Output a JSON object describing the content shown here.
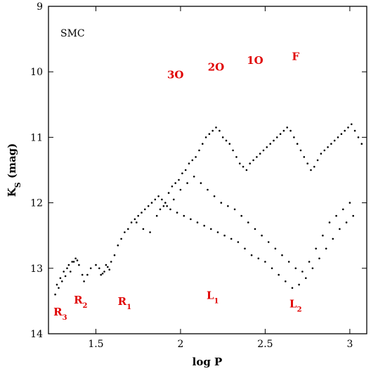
{
  "chart_data": {
    "type": "scatter",
    "title": "",
    "panel_label": "SMC",
    "xlabel": "log P",
    "ylabel_main": "K",
    "ylabel_sub": "S",
    "ylabel_suffix": " (mag)",
    "xlim": [
      1.22,
      3.1
    ],
    "ylim": [
      9,
      14
    ],
    "y_inverted": true,
    "grid": false,
    "x_ticks": [
      1.5,
      2,
      2.5,
      3
    ],
    "x_tick_labels": [
      "1.5",
      "2",
      "2.5",
      "3"
    ],
    "y_ticks": [
      9,
      10,
      11,
      12,
      13,
      14
    ],
    "y_tick_labels": [
      "9",
      "10",
      "11",
      "12",
      "13",
      "14"
    ],
    "point_color": "#000000",
    "annotation_color": "#e00000",
    "annotations": [
      {
        "text": "3O",
        "x": 1.97,
        "y": 10.1
      },
      {
        "text": "2O",
        "x": 2.21,
        "y": 9.98
      },
      {
        "text": "1O",
        "x": 2.44,
        "y": 9.88
      },
      {
        "text": "F",
        "x": 2.68,
        "y": 9.82
      },
      {
        "text": "R",
        "sub": "3",
        "x": 1.29,
        "y": 13.72
      },
      {
        "text": "R",
        "sub": "2",
        "x": 1.41,
        "y": 13.54
      },
      {
        "text": "R",
        "sub": "1",
        "x": 1.67,
        "y": 13.56
      },
      {
        "text": "L",
        "sub": "1",
        "x": 2.19,
        "y": 13.47
      },
      {
        "text": "L",
        "sub": "2",
        "x": 2.68,
        "y": 13.6
      }
    ],
    "series": [
      {
        "x": [
          1.27,
          1.29,
          1.31,
          1.34,
          1.36,
          1.38,
          1.4,
          1.42,
          1.3,
          1.33,
          1.37,
          1.35,
          1.39,
          1.32,
          1.28,
          1.26,
          1.43,
          1.45,
          1.47,
          1.5,
          1.52,
          1.55,
          1.57,
          1.59,
          1.53,
          1.56,
          1.58,
          1.54,
          1.61,
          1.63,
          1.65,
          1.67,
          1.69,
          1.71,
          1.73,
          1.75,
          1.77,
          1.79,
          1.81,
          1.83,
          1.85,
          1.87,
          1.89,
          1.91,
          1.93,
          1.95,
          1.97,
          1.99,
          2.01,
          2.03,
          2.05,
          2.07,
          2.09,
          2.11,
          2.13,
          2.15,
          2.17,
          2.19,
          2.21,
          2.23,
          2.25,
          2.27,
          2.29,
          2.31,
          2.33,
          2.35,
          2.37,
          2.39,
          2.41,
          2.43,
          2.45,
          2.47,
          2.49,
          2.51,
          2.53,
          2.55,
          2.57,
          2.59,
          2.61,
          2.63,
          2.65,
          2.67,
          2.69,
          2.71,
          2.73,
          2.75,
          2.77,
          2.79,
          2.81,
          2.83,
          2.85,
          2.87,
          2.89,
          2.91,
          2.93,
          2.95,
          2.97,
          2.99,
          3.01,
          3.03,
          3.05,
          3.07,
          1.88,
          1.92,
          1.96,
          2.0,
          2.04,
          2.08,
          2.12,
          2.16,
          2.2,
          2.24,
          2.28,
          2.32,
          2.36,
          2.4,
          2.44,
          2.48,
          2.52,
          2.56,
          2.6,
          2.64,
          2.68,
          2.72,
          2.76,
          2.8,
          2.84,
          2.88,
          2.92,
          2.96,
          3.0,
          1.74,
          1.78,
          1.82,
          1.86,
          1.9,
          1.94,
          1.98,
          2.02,
          2.06,
          2.1,
          2.14,
          2.18,
          2.22,
          2.26,
          2.3,
          2.34,
          2.38,
          2.42,
          2.46,
          2.5,
          2.54,
          2.58,
          2.62,
          2.66,
          2.7,
          2.74,
          2.78,
          2.82,
          2.86,
          2.9,
          2.94,
          2.98,
          3.02
        ],
        "y": [
          13.25,
          13.15,
          13.05,
          12.95,
          12.9,
          12.85,
          12.95,
          13.1,
          13.2,
          13.0,
          12.9,
          13.05,
          12.88,
          13.12,
          13.3,
          13.4,
          13.2,
          13.1,
          13.0,
          12.95,
          13.0,
          13.05,
          12.98,
          12.9,
          13.1,
          12.95,
          13.02,
          13.08,
          12.8,
          12.65,
          12.55,
          12.45,
          12.4,
          12.3,
          12.25,
          12.2,
          12.15,
          12.1,
          12.05,
          12.0,
          11.95,
          11.9,
          11.95,
          12.0,
          11.85,
          11.75,
          11.7,
          11.65,
          11.55,
          11.5,
          11.4,
          11.35,
          11.3,
          11.2,
          11.1,
          11.0,
          10.95,
          10.9,
          10.85,
          10.9,
          11.0,
          11.05,
          11.1,
          11.2,
          11.3,
          11.4,
          11.45,
          11.5,
          11.4,
          11.35,
          11.3,
          11.25,
          11.2,
          11.15,
          11.1,
          11.05,
          11.0,
          10.95,
          10.9,
          10.85,
          10.9,
          11.0,
          11.1,
          11.2,
          11.3,
          11.4,
          11.5,
          11.45,
          11.35,
          11.25,
          11.2,
          11.15,
          11.1,
          11.05,
          11.0,
          10.95,
          10.9,
          10.85,
          10.8,
          10.9,
          11.0,
          11.1,
          12.1,
          12.05,
          11.95,
          11.8,
          11.7,
          11.6,
          11.7,
          11.8,
          11.9,
          12.0,
          12.05,
          12.1,
          12.2,
          12.3,
          12.4,
          12.5,
          12.6,
          12.7,
          12.8,
          12.9,
          13.0,
          13.05,
          12.9,
          12.7,
          12.5,
          12.3,
          12.2,
          12.1,
          12.0,
          12.3,
          12.4,
          12.45,
          12.2,
          12.05,
          12.1,
          12.15,
          12.2,
          12.25,
          12.3,
          12.35,
          12.4,
          12.45,
          12.5,
          12.55,
          12.6,
          12.7,
          12.8,
          12.85,
          12.9,
          13.0,
          13.1,
          13.2,
          13.3,
          13.25,
          13.15,
          13.0,
          12.85,
          12.7,
          12.55,
          12.4,
          12.3,
          12.2
        ]
      }
    ]
  }
}
